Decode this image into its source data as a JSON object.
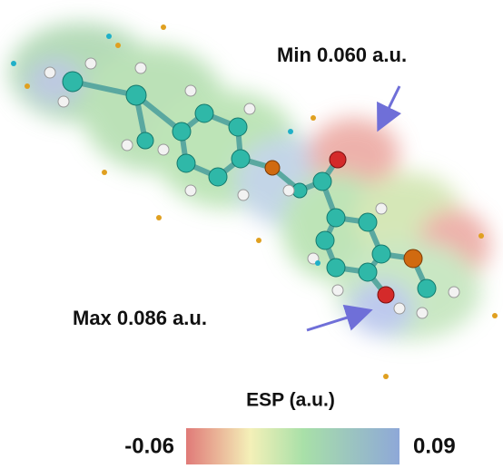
{
  "annotations": {
    "min": "Min 0.060 a.u.",
    "max": "Max 0.086 a.u."
  },
  "colorbar": {
    "title": "ESP (a.u.)",
    "min_label": "-0.06",
    "max_label": "0.09"
  }
}
